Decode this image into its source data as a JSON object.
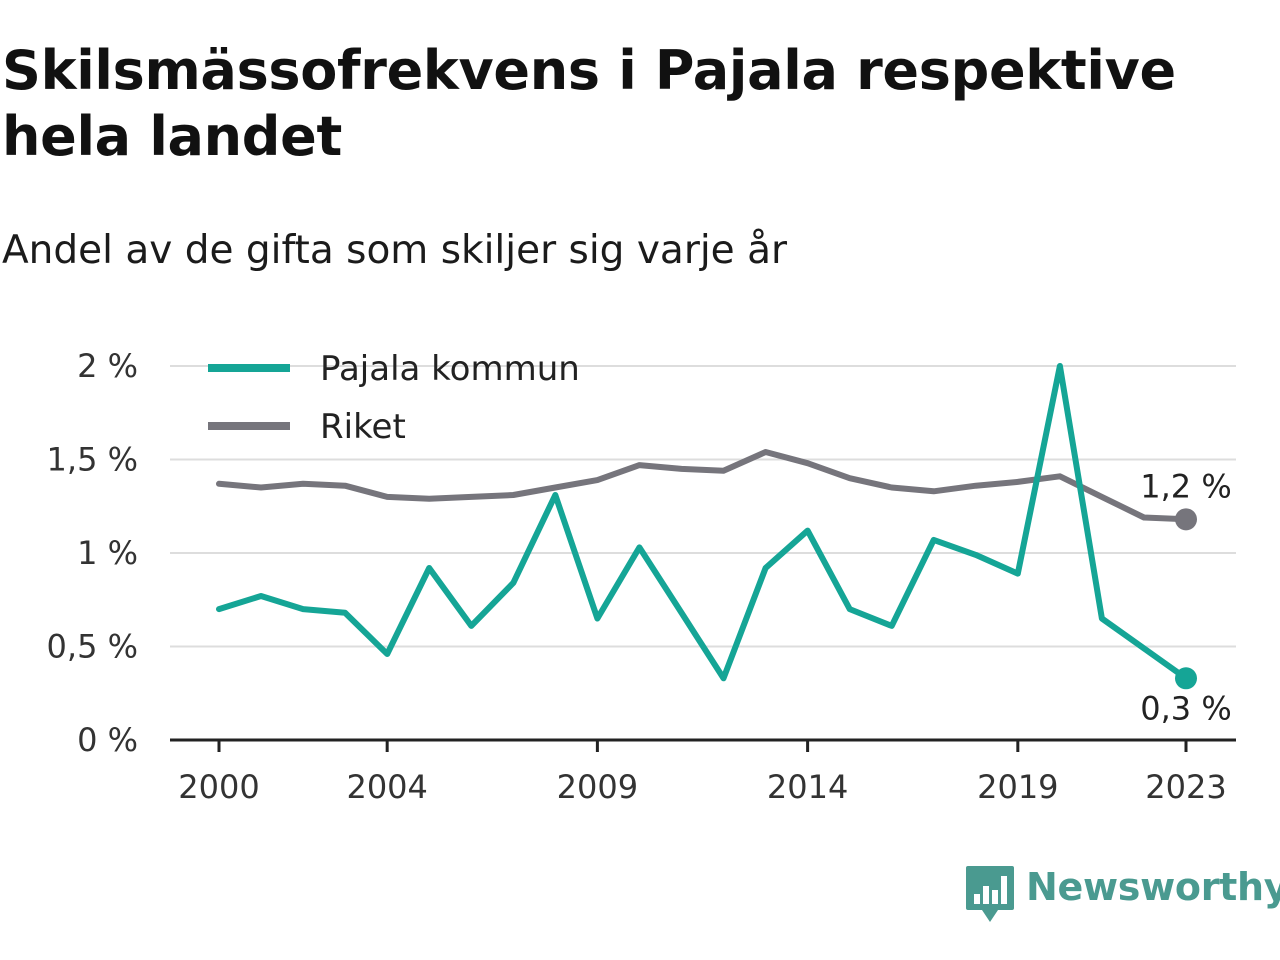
{
  "header": {
    "title": "Skilsmässofrekvens i Pajala respektive hela landet",
    "subtitle": "Andel av de gifta som skiljer sig varje år"
  },
  "brand": {
    "name": "Newsworthy",
    "icon": "newsworthy-logo-icon",
    "color": "#4a9a90"
  },
  "chart_data": {
    "type": "line",
    "x": [
      2000,
      2001,
      2002,
      2003,
      2004,
      2005,
      2006,
      2007,
      2008,
      2009,
      2010,
      2011,
      2012,
      2013,
      2014,
      2015,
      2016,
      2017,
      2018,
      2019,
      2020,
      2021,
      2022,
      2023
    ],
    "x_ticks": [
      2000,
      2004,
      2009,
      2014,
      2019,
      2023
    ],
    "x_tick_labels": [
      "2000",
      "2004",
      "2009",
      "2014",
      "2019",
      "2023"
    ],
    "ylim": [
      0,
      2
    ],
    "y_ticks": [
      0,
      0.5,
      1,
      1.5,
      2
    ],
    "y_tick_labels": [
      "0 %",
      "0,5 %",
      "1 %",
      "1,5 %",
      "2 %"
    ],
    "grid": true,
    "legend_position": "top-left",
    "series": [
      {
        "name": "Pajala kommun",
        "color": "#15a596",
        "values": [
          0.7,
          0.77,
          0.7,
          0.68,
          0.46,
          0.92,
          0.61,
          0.84,
          1.31,
          0.65,
          1.03,
          0.68,
          0.33,
          0.92,
          1.12,
          0.7,
          0.61,
          1.07,
          0.99,
          0.89,
          2.0,
          0.65,
          0.49,
          0.33
        ],
        "end_label": "0,3 %"
      },
      {
        "name": "Riket",
        "color": "#76757c",
        "values": [
          1.37,
          1.35,
          1.37,
          1.36,
          1.3,
          1.29,
          1.3,
          1.31,
          1.35,
          1.39,
          1.47,
          1.45,
          1.44,
          1.54,
          1.48,
          1.4,
          1.35,
          1.33,
          1.36,
          1.38,
          1.41,
          1.3,
          1.19,
          1.18
        ],
        "end_label": "1,2 %"
      }
    ]
  }
}
